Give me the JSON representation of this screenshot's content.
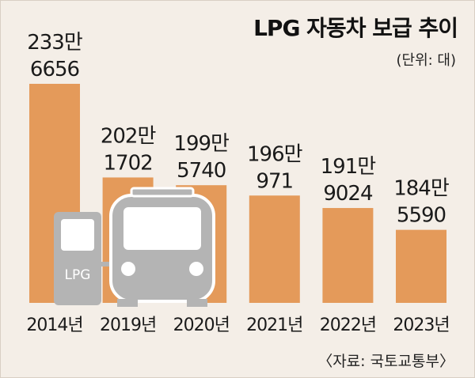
{
  "chart_data": {
    "type": "bar",
    "title": "LPG 자동차 보급 추이",
    "unit": "(단위: 대)",
    "source": "〈자료: 국토교통부〉",
    "categories": [
      "2014년",
      "2019년",
      "2020년",
      "2021년",
      "2022년",
      "2023년"
    ],
    "values": [
      2336656,
      2021702,
      1995740,
      1960971,
      1919024,
      1845590
    ],
    "value_labels": [
      [
        "233만",
        "6656"
      ],
      [
        "202만",
        "1702"
      ],
      [
        "199만",
        "5740"
      ],
      [
        "196만",
        "971"
      ],
      [
        "191만",
        "9024"
      ],
      [
        "184만",
        "5590"
      ]
    ],
    "bar_color": "#e49a5a",
    "grid": false,
    "legend": "none"
  },
  "illustration": {
    "pump_label": "LPG",
    "pump_color": "#b4b4b4",
    "bus_color": "#b4b4b4"
  }
}
